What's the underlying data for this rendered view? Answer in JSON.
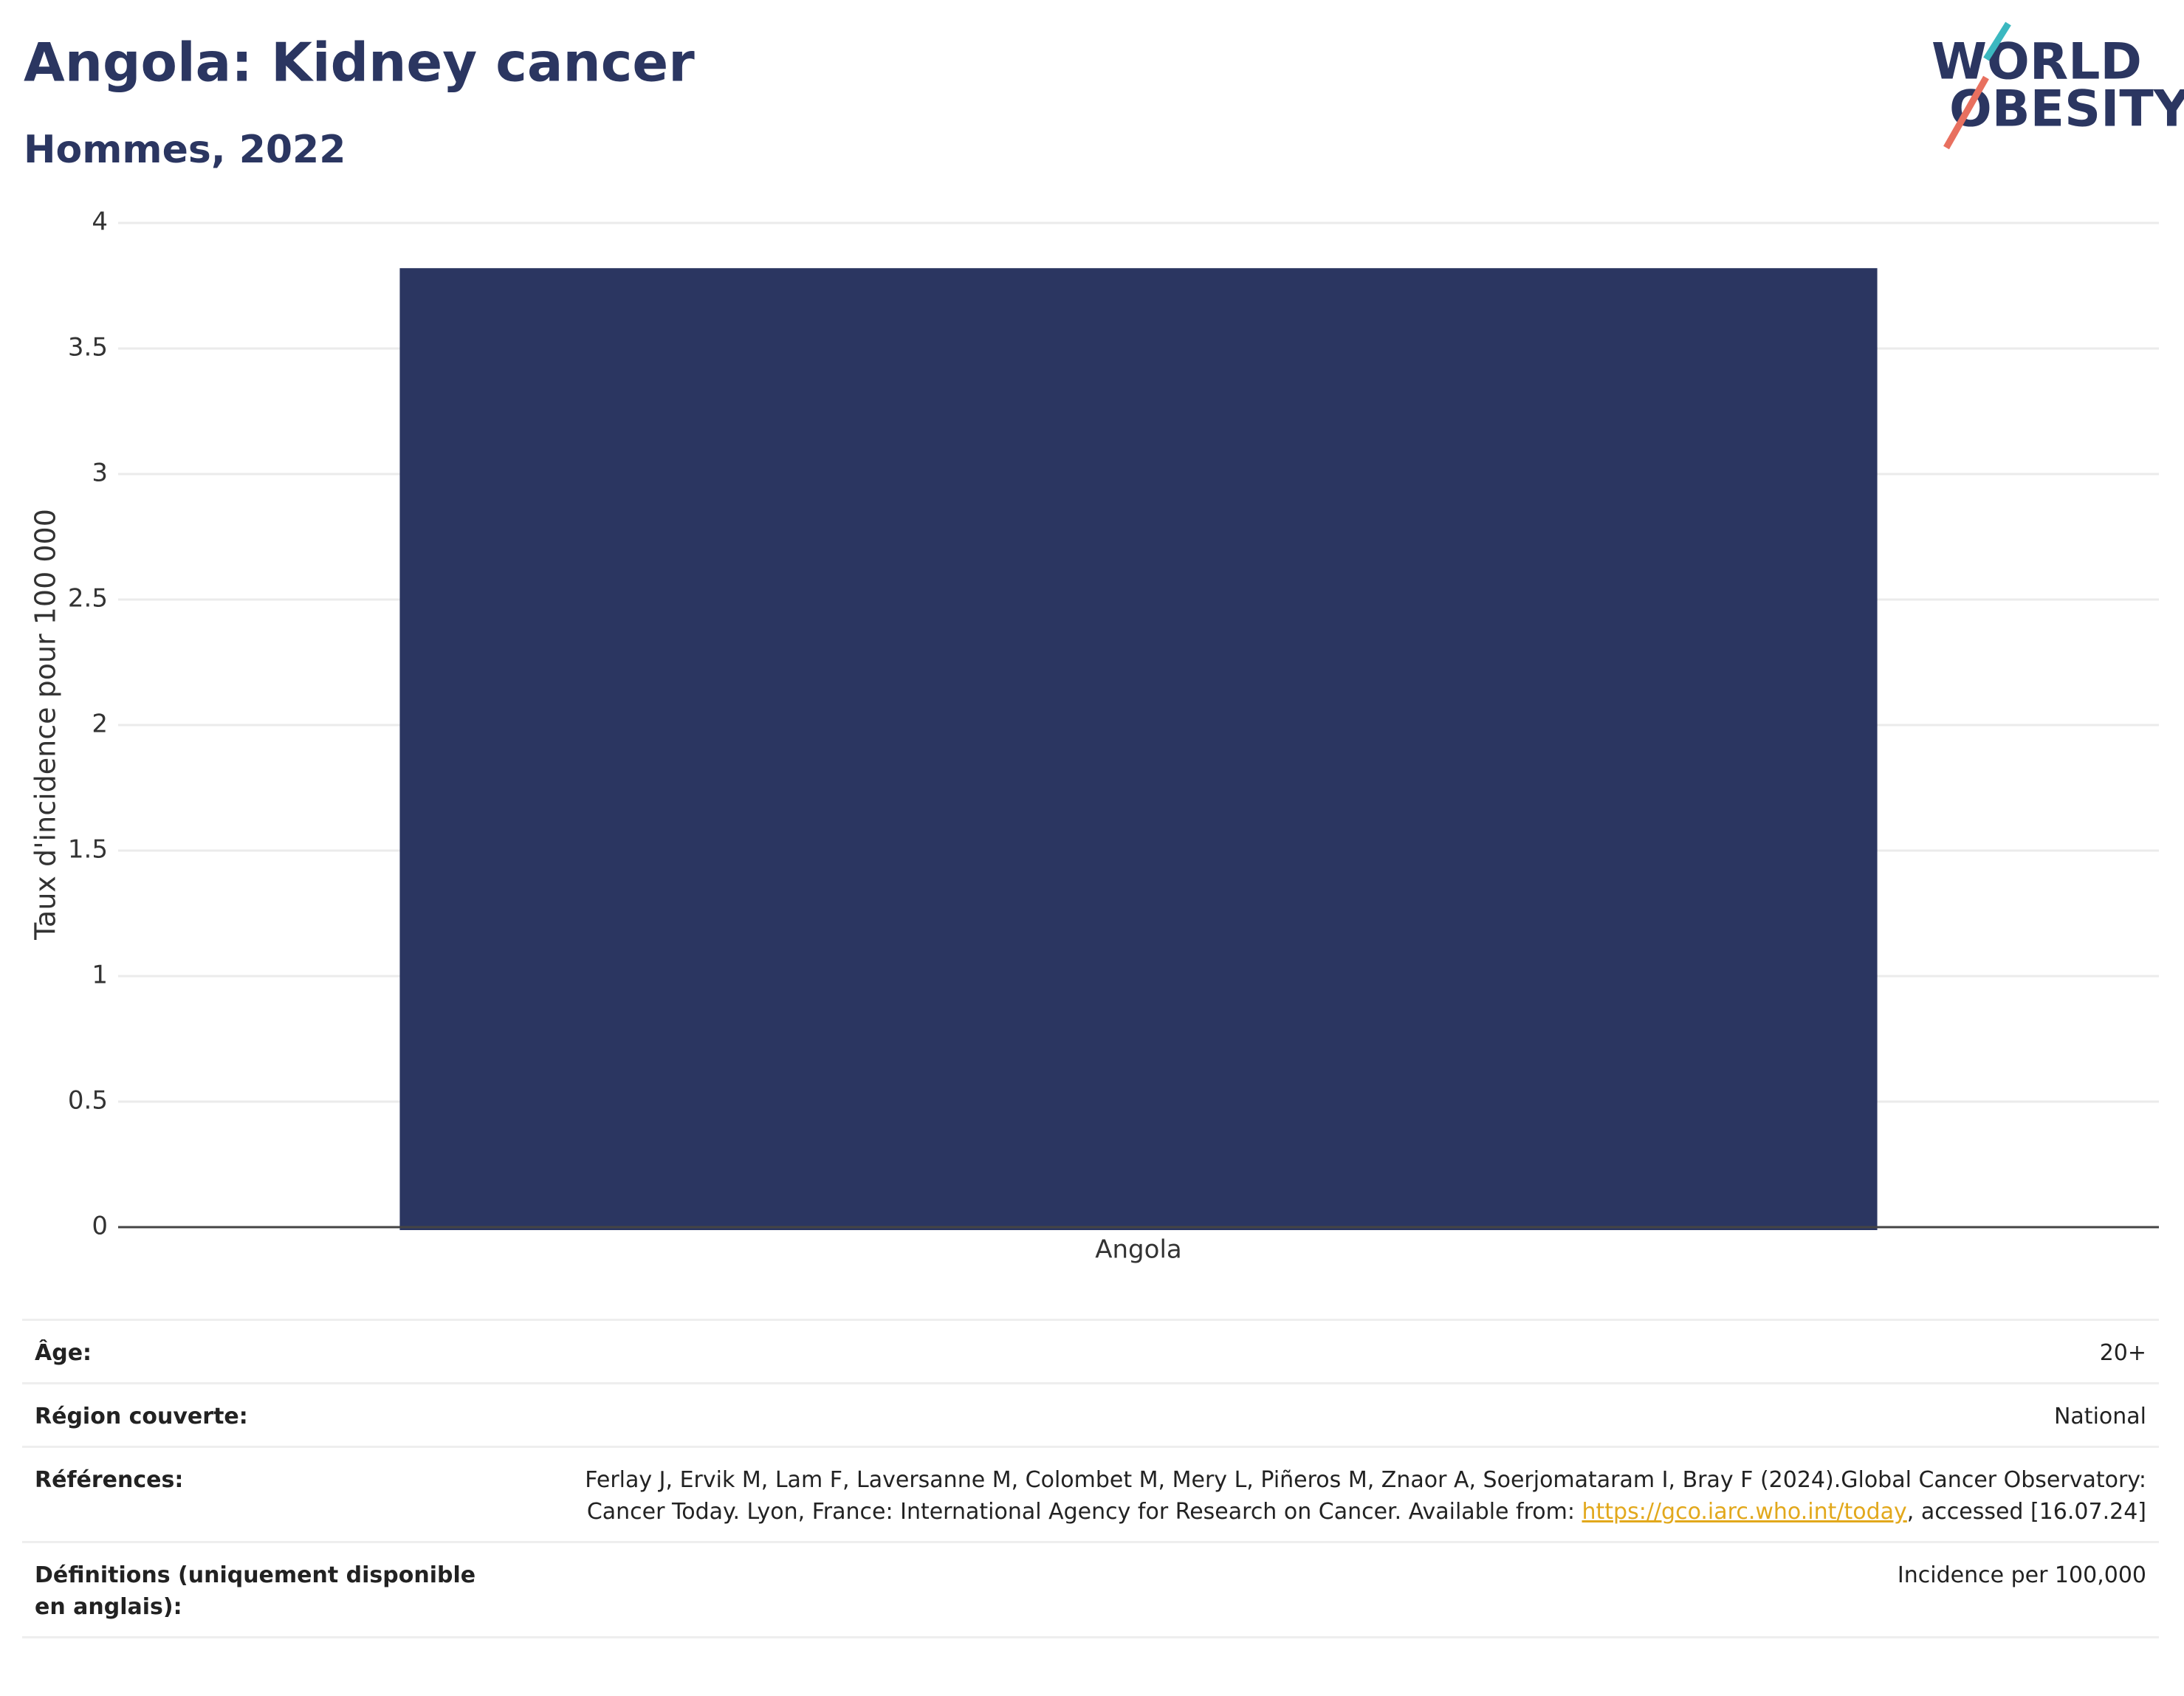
{
  "chart_data": {
    "type": "bar",
    "title": "Angola: Kidney cancer",
    "subtitle": "Hommes, 2022",
    "y_label": "Taux d'incidence pour 100 000",
    "categories": [
      "Angola"
    ],
    "values": [
      3.82
    ],
    "color": "#2b3661",
    "ylim": [
      0,
      4
    ],
    "yticks": [
      0,
      0.5,
      1,
      1.5,
      2,
      2.5,
      3,
      3.5,
      4
    ],
    "grid": true
  },
  "logo": {
    "line1": "WORLD",
    "line2": "OBESITY"
  },
  "table": {
    "rows": [
      [
        "Âge:",
        "20+"
      ],
      [
        "Région couverte:",
        "National"
      ],
      [
        "Références:",
        {
          "text": "Ferlay J, Ervik M, Lam F, Laversanne M, Colombet M, Mery L, Piñeros M, Znaor A, Soerjomataram I, Bray F (2024).Global Cancer Observatory: Cancer Today. Lyon, France: International Agency for Research on Cancer. Available from: ",
          "link": "https://gco.iarc.who.int/today",
          "after": ", accessed [16.07.24]"
        }
      ],
      [
        "Définitions (uniquement disponible en anglais):",
        "Incidence per 100,000"
      ]
    ]
  }
}
